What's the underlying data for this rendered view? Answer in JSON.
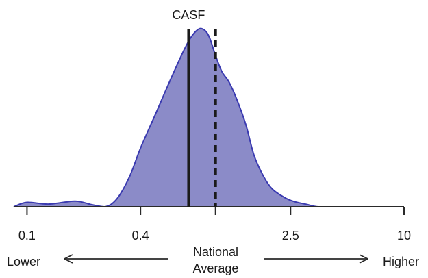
{
  "chart_data": {
    "type": "area",
    "title": "",
    "xlabel": "",
    "ylabel": "",
    "x_scale": "log",
    "xlim": [
      0.085,
      10
    ],
    "x_ticks": [
      {
        "value": 0.1,
        "label": "0.1"
      },
      {
        "value": 0.4,
        "label": "0.4"
      },
      {
        "value": 1.0,
        "label": ""
      },
      {
        "value": 2.5,
        "label": "2.5"
      },
      {
        "value": 10,
        "label": "10"
      }
    ],
    "density_curve": {
      "color": "#8b8bc8",
      "stroke": "#3a3ab0",
      "x": [
        0.085,
        0.1,
        0.13,
        0.18,
        0.22,
        0.26,
        0.3,
        0.35,
        0.4,
        0.48,
        0.58,
        0.68,
        0.75,
        0.82,
        0.88,
        0.93,
        1.0,
        1.08,
        1.18,
        1.3,
        1.45,
        1.6,
        1.8,
        2.0,
        2.3,
        2.6,
        3.0,
        3.5,
        4.2,
        5.0,
        6.5,
        10
      ],
      "y": [
        0.0,
        0.025,
        0.015,
        0.032,
        0.012,
        0.0,
        0.045,
        0.17,
        0.33,
        0.52,
        0.72,
        0.88,
        0.96,
        1.0,
        0.99,
        0.95,
        0.85,
        0.76,
        0.7,
        0.6,
        0.46,
        0.29,
        0.17,
        0.1,
        0.055,
        0.03,
        0.015,
        0.0,
        0.0,
        0.0,
        0.0,
        0.0
      ]
    },
    "reference_lines": [
      {
        "name": "CASF",
        "label": "CASF",
        "x": 0.72,
        "style": "solid"
      },
      {
        "name": "national-average",
        "label": "",
        "x": 1.0,
        "style": "dashed"
      }
    ],
    "direction_labels": {
      "left": "Lower",
      "center_line1": "National",
      "center_line2": "Average",
      "right": "Higher"
    }
  }
}
